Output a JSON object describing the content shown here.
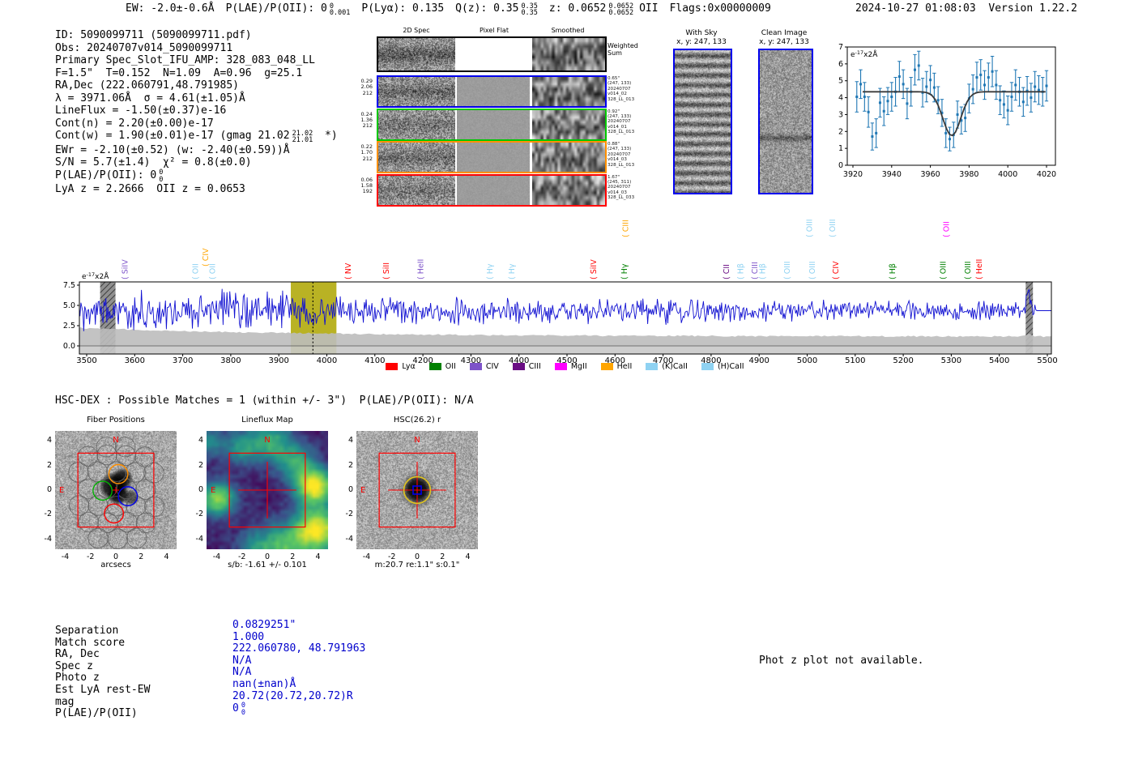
{
  "header": {
    "segments": [
      {
        "t": "EW: -2.0±-0.6Å"
      },
      {
        "t": "P(LAE)/P(OII): 0",
        "sup": "0",
        "sub": "0.001"
      },
      {
        "t": "P(Lyα): 0.135"
      },
      {
        "t": "Q(z): 0.35",
        "sup": "0.35",
        "sub": "0.35"
      },
      {
        "t": "z: 0.0652",
        "sup": "0.0652",
        "sub": "0.0652",
        "post": "OII"
      },
      {
        "t": "Flags:0x00000009"
      }
    ],
    "datetime": "2024-10-27 01:08:03",
    "version": "Version 1.22.2"
  },
  "info_lines": [
    {
      "t": "ID: 5090099711 (5090099711.pdf)"
    },
    {
      "t": "Obs: 20240707v014_5090099711"
    },
    {
      "t": "Primary Spec_Slot_IFU_AMP: 328_083_048_LL"
    },
    {
      "t": "F=1.5\"  T=0.152  N=1.09  A=0.96  g=25.1"
    },
    {
      "t": "RA,Dec (222.060791,48.791985)"
    },
    {
      "t": "λ = 3971.06Å  σ = 4.61(±1.05)Å"
    },
    {
      "t": "LineFlux = -1.50(±0.37)e-16"
    },
    {
      "t": "Cont(n) = 2.20(±0.00)e-17"
    },
    {
      "t": "Cont(w) = 1.90(±0.01)e-17 (gmag 21.02",
      "sup": "21.02",
      "sub": "21.01",
      "post": " *)"
    },
    {
      "t": "EWr = -2.10(±0.52) (w: -2.40(±0.59))Å"
    },
    {
      "t": "S/N = 5.7(±1.4)  χ² = 0.8(±0.0)"
    },
    {
      "t": "P(LAE)/P(OII): 0",
      "sup": "0",
      "sub": "0"
    },
    {
      "t": "LyA z = 2.2666  OII z = 0.0653"
    }
  ],
  "spec2d": {
    "col_headers": [
      "2D Spec",
      "Pixel Flat",
      "Smoothed"
    ],
    "weighted": {
      "label_lines": [
        "Weighted",
        "Sum"
      ]
    },
    "rows": [
      {
        "color": "#0000ee",
        "left": [
          "0.29",
          "2.06",
          "212"
        ],
        "right": [
          "0.65\"",
          "(247, 133)",
          "20240707",
          "v014_02",
          "328_LL_013"
        ]
      },
      {
        "color": "#00c800",
        "left": [
          "0.24",
          "1.36",
          "212"
        ],
        "right": [
          "0.92\"",
          "(247, 133)",
          "20240707",
          "v014_01",
          "328_LL_013"
        ]
      },
      {
        "color": "#ff9000",
        "left": [
          "0.22",
          "1.70",
          "212"
        ],
        "right": [
          "0.88\"",
          "(247, 133)",
          "20240707",
          "v014_03",
          "328_LL_013"
        ]
      },
      {
        "color": "#ff0000",
        "left": [
          "0.06",
          "1.58",
          "192"
        ],
        "right": [
          "1.67\"",
          "(245, 311)",
          "20240707",
          "v014_03",
          "328_LL_033"
        ]
      }
    ]
  },
  "sky_panels": [
    {
      "title": "With Sky",
      "coords": "x, y: 247, 133"
    },
    {
      "title": "Clean Image",
      "coords": "x, y: 247, 133"
    }
  ],
  "hscdex_line": "HSC-DEX : Possible Matches = 1 (within +/- 3\")  P(LAE)/P(OII): N/A",
  "cutouts": [
    {
      "title": "Fiber Positions",
      "xlabel": "arcsecs"
    },
    {
      "title": "Lineflux Map",
      "xlabel": "s/b: -1.61 +/- 0.101"
    },
    {
      "title": "HSC(26.2) r",
      "xlabel": "m:20.7 re:1.1\" s:0.1\""
    }
  ],
  "cutout_axis": {
    "xticks": [
      -4,
      -2,
      0,
      2,
      4
    ],
    "yticks": [
      4,
      2,
      0,
      -2,
      -4
    ],
    "compass": {
      "n": "N",
      "e": "E"
    }
  },
  "match_table": {
    "labels": [
      "Separation",
      "Match score",
      "RA, Dec",
      "Spec z",
      "Photo z",
      "Est LyA rest-EW",
      "mag",
      "P(LAE)/P(OII)"
    ],
    "values": [
      {
        "t": "0.0829251\""
      },
      {
        "t": "1.000"
      },
      {
        "t": "222.060780, 48.791963"
      },
      {
        "t": "N/A"
      },
      {
        "t": "N/A"
      },
      {
        "t": "nan(±nan)Å"
      },
      {
        "t": "20.72(20.72,20.72)R"
      },
      {
        "t": "0",
        "sup": "0",
        "sub": "0"
      }
    ]
  },
  "photz_note": "Phot z plot not available.",
  "chart_data": [
    {
      "type": "scatter",
      "name": "line-fit-inset",
      "unit": {
        "base": "e",
        "exp": "-17",
        "suffix": "x2Å"
      },
      "xlim": [
        3915,
        4025
      ],
      "ylim": [
        -0.35,
        7
      ],
      "xticks": [
        3920,
        3940,
        3960,
        3980,
        4000,
        4020
      ],
      "yticks": [
        0,
        1,
        2,
        3,
        4,
        5,
        6,
        7
      ],
      "x": [
        3922,
        3924,
        3926,
        3928,
        3930,
        3932,
        3934,
        3936,
        3938,
        3940,
        3942,
        3944,
        3946,
        3948,
        3950,
        3952,
        3954,
        3956,
        3958,
        3960,
        3962,
        3964,
        3966,
        3968,
        3970,
        3972,
        3974,
        3976,
        3978,
        3980,
        3982,
        3984,
        3986,
        3988,
        3990,
        3992,
        3994,
        3996,
        3998,
        4000,
        4002,
        4004,
        4006,
        4008,
        4010,
        4012,
        4014,
        4016,
        4018,
        4020
      ],
      "y": [
        4.05,
        4.8,
        4.05,
        3.15,
        1.7,
        1.9,
        3.7,
        3.2,
        3.8,
        4.05,
        4.35,
        5.25,
        4.8,
        3.65,
        4.35,
        5.65,
        5.9,
        4.3,
        4.65,
        5.05,
        4.6,
        3.85,
        3.1,
        1.9,
        1.55,
        1.8,
        3.0,
        2.65,
        2.8,
        3.95,
        4.5,
        5.2,
        5.35,
        4.75,
        5.2,
        5.55,
        4.75,
        3.85,
        3.6,
        3.25,
        4.05,
        4.75,
        4.35,
        3.75,
        4.4,
        4.0,
        4.65,
        4.45,
        4.35,
        4.7
      ],
      "yerr": [
        0.9,
        0.85,
        0.85,
        0.9,
        0.8,
        0.85,
        0.85,
        0.85,
        0.8,
        0.85,
        0.85,
        0.9,
        0.85,
        0.9,
        0.85,
        0.9,
        0.85,
        0.85,
        0.9,
        0.85,
        0.85,
        0.8,
        0.8,
        0.85,
        0.7,
        0.75,
        0.8,
        0.8,
        0.8,
        0.85,
        0.85,
        0.9,
        0.9,
        0.85,
        0.85,
        0.9,
        0.85,
        0.85,
        0.8,
        0.85,
        0.85,
        0.9,
        0.85,
        0.85,
        0.85,
        0.85,
        0.9,
        0.85,
        0.85,
        0.9
      ],
      "fit": {
        "shape": "gaussian_absorption",
        "continuum": 4.35,
        "center": 3971.06,
        "sigma": 4.61,
        "depth": 2.6
      },
      "point_color": "#1f77b4",
      "fit_color": "#3a3a3a"
    },
    {
      "type": "line",
      "name": "full-spectrum",
      "unit": {
        "base": "e",
        "exp": "-17",
        "suffix": "x2Å"
      },
      "xlim": [
        3485,
        5510
      ],
      "ylim": [
        -1.0,
        7.9
      ],
      "xticks": [
        3500,
        3600,
        3700,
        3800,
        3900,
        4000,
        4100,
        4200,
        4300,
        4400,
        4500,
        4600,
        4700,
        4800,
        4900,
        5000,
        5100,
        5200,
        5300,
        5400,
        5500
      ],
      "yticks": [
        0.0,
        2.5,
        5.0,
        7.5
      ],
      "line_color": "#1212d2",
      "baseline": 4.3,
      "noise_seed": 12,
      "noise_regions": [
        [
          3470,
          3950,
          1.5
        ],
        [
          3950,
          4300,
          1.05
        ],
        [
          4300,
          4800,
          0.95
        ],
        [
          4800,
          5478,
          0.78
        ]
      ],
      "flat_tail": {
        "start": 5478,
        "value": 4.35
      },
      "absorption": {
        "center": 3971.06,
        "sigma": 7,
        "depth": 1.9
      },
      "edge_spike": {
        "center": 5462,
        "sigma": 4,
        "height": 2.3
      },
      "noise_floor": {
        "base": 1.15,
        "amp": 1.1,
        "decay": 500,
        "bump_center": 5462,
        "bump_height": 0.35,
        "fill": "#bdbdbd"
      },
      "highlight_band": {
        "x0": 3925,
        "x1": 4020,
        "color": "#b9b224"
      },
      "masked_bands": [
        [
          3528,
          3560
        ],
        [
          5455,
          5470
        ]
      ],
      "detection_wavelength": 3971.06,
      "solution_colors": {
        "lya": "#ff0000",
        "oii": "#008000",
        "civ": "#7d53c9",
        "ciii": "#6a0d84",
        "mgii": "#ff00ff",
        "heii": "#ffa500",
        "caii": "#8fd2f2"
      },
      "emission_labels": [
        [
          "SiIV",
          3580,
          "civ",
          0
        ],
        [
          "OII",
          3727,
          "caii",
          0
        ],
        [
          "CIV",
          3748,
          "heii",
          16
        ],
        [
          "OII",
          3762,
          "caii",
          0
        ],
        [
          "NV",
          4045,
          "lya",
          0
        ],
        [
          "SiII",
          4124,
          "lya",
          0
        ],
        [
          "HeII",
          4196,
          "civ",
          0
        ],
        [
          "Hγ",
          4340,
          "caii",
          0
        ],
        [
          "Hγ",
          4385,
          "caii",
          0
        ],
        [
          "SiIV",
          4556,
          "lya",
          0
        ],
        [
          "Hγ",
          4620,
          "oii",
          0
        ],
        [
          "CIII",
          4622,
          "heii",
          52
        ],
        [
          "CII",
          4832,
          "ciii",
          0
        ],
        [
          "Hβ",
          4862,
          "caii",
          0
        ],
        [
          "CIII",
          4891,
          "civ",
          0
        ],
        [
          "Hβ",
          4907,
          "caii",
          0
        ],
        [
          "OIII",
          4959,
          "caii",
          0
        ],
        [
          "OIII",
          5005,
          "caii",
          52
        ],
        [
          "OIII",
          5011,
          "caii",
          0
        ],
        [
          "OIII",
          5053,
          "caii",
          52
        ],
        [
          "CIV",
          5060,
          "lya",
          0
        ],
        [
          "Hβ",
          5178,
          "oii",
          0
        ],
        [
          "OIII",
          5283,
          "oii",
          0
        ],
        [
          "OII",
          5290,
          "mgii",
          52
        ],
        [
          "OIII",
          5335,
          "oii",
          0
        ],
        [
          "HeII",
          5358,
          "lya",
          0
        ]
      ],
      "legend": [
        [
          "Lyα",
          "lya"
        ],
        [
          "OII",
          "oii"
        ],
        [
          "CIV",
          "civ"
        ],
        [
          "CIII",
          "ciii"
        ],
        [
          "MgII",
          "mgii"
        ],
        [
          "HeII",
          "heii"
        ],
        [
          "(K)CaII",
          "caii"
        ],
        [
          "(H)CaII",
          "caii"
        ]
      ]
    }
  ]
}
